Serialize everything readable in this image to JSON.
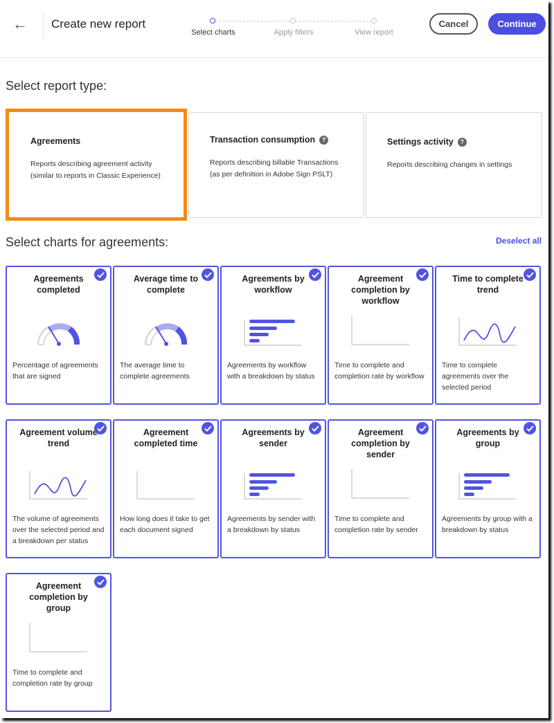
{
  "header": {
    "title": "Create new report",
    "back_icon": "arrow-left-icon",
    "cancel": "Cancel",
    "continue": "Continue",
    "steps": [
      {
        "label": "Select charts",
        "active": true
      },
      {
        "label": "Apply filters",
        "active": false
      },
      {
        "label": "View report",
        "active": false
      }
    ]
  },
  "colors": {
    "accent": "#4b4ee0",
    "selected_border": "#f28c13"
  },
  "report_type": {
    "heading": "Select report type:",
    "types": [
      {
        "title": "Agreements",
        "desc1": "Reports describing agreement activity",
        "desc2": "(similar to reports in Classic Experience)",
        "selected": true,
        "help": false
      },
      {
        "title": "Transaction consumption",
        "desc1": "Reports describing billable Transactions",
        "desc2": "(as per definition in Adobe Sign PSLT)",
        "selected": false,
        "help": true
      },
      {
        "title": "Settings activity",
        "desc1": "Reports describing changes in settings",
        "desc2": "",
        "selected": false,
        "help": true
      }
    ]
  },
  "charts": {
    "heading": "Select charts for agreements:",
    "deselect_all": "Deselect all",
    "items": [
      {
        "title": "Agreements completed",
        "desc": "Percentage of agreements that are signed",
        "icon": "gauge",
        "checked": true
      },
      {
        "title": "Average time to complete",
        "desc": "The average time to complete agreements",
        "icon": "gauge",
        "checked": true
      },
      {
        "title": "Agreements by workflow",
        "desc": "Agreements by workflow with a breakdown by status",
        "icon": "bars",
        "checked": true
      },
      {
        "title": "Agreement completion by workflow",
        "desc": "Time to complete and completion rate by workflow",
        "icon": "scatter",
        "checked": true
      },
      {
        "title": "Time to complete trend",
        "desc": "Time to complete agreements over the selected period",
        "icon": "line",
        "checked": true
      },
      {
        "title": "Agreement volume trend",
        "desc": "The volume of agreements over the selected period and a breakdown per status",
        "icon": "line",
        "checked": true
      },
      {
        "title": "Agreement completed time",
        "desc": "How long does it take to get each document signed",
        "icon": "histogram",
        "checked": true
      },
      {
        "title": "Agreements by sender",
        "desc": "Agreements by sender with a breakdown by status",
        "icon": "bars",
        "checked": true
      },
      {
        "title": "Agreement completion by sender",
        "desc": "Time to complete and completion rate by sender",
        "icon": "scatter",
        "checked": true
      },
      {
        "title": "Agreements by group",
        "desc": "Agreements by group with a breakdown by status",
        "icon": "bars",
        "checked": true
      },
      {
        "title": "Agreement completion by group",
        "desc": "Time to complete and completion rate by group",
        "icon": "scatter",
        "checked": true
      }
    ]
  }
}
